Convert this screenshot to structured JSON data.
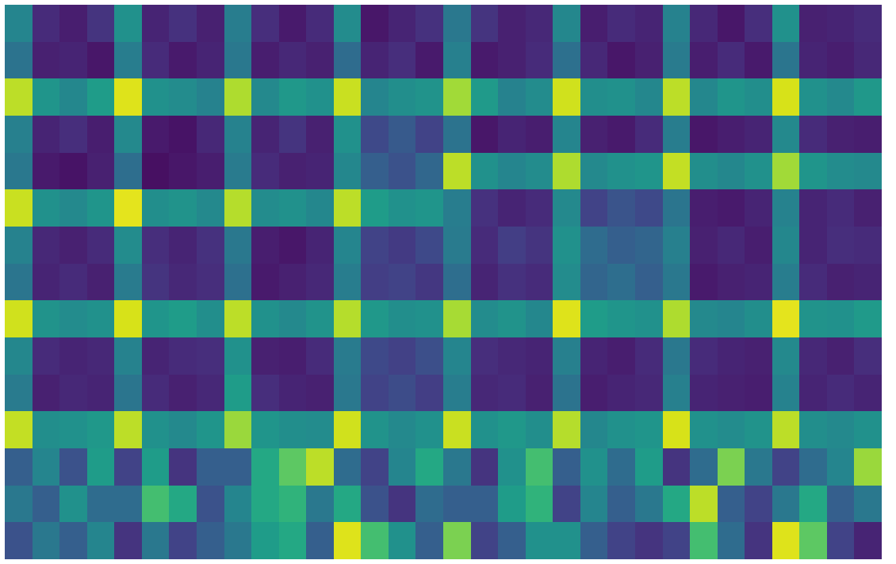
{
  "chart_data": {
    "type": "heatmap",
    "color": "Viridis",
    "tick_labels": false,
    "grid": false,
    "zlim": [
      0,
      1
    ],
    "cells": [
      [
        0.45,
        0.12,
        0.08,
        0.15,
        0.5,
        0.1,
        0.14,
        0.09,
        0.42,
        0.13,
        0.07,
        0.12,
        0.48,
        0.06,
        0.1,
        0.14,
        0.4,
        0.15,
        0.09,
        0.11,
        0.46,
        0.08,
        0.12,
        0.1,
        0.44,
        0.11,
        0.06,
        0.13,
        0.5,
        0.09,
        0.1,
        0.12
      ],
      [
        0.38,
        0.09,
        0.1,
        0.06,
        0.42,
        0.12,
        0.07,
        0.1,
        0.4,
        0.08,
        0.11,
        0.09,
        0.35,
        0.1,
        0.13,
        0.07,
        0.43,
        0.07,
        0.09,
        0.12,
        0.37,
        0.11,
        0.06,
        0.09,
        0.41,
        0.08,
        0.12,
        0.07,
        0.39,
        0.1,
        0.08,
        0.11
      ],
      [
        0.9,
        0.52,
        0.46,
        0.55,
        0.95,
        0.5,
        0.48,
        0.44,
        0.88,
        0.47,
        0.53,
        0.5,
        0.92,
        0.45,
        0.49,
        0.51,
        0.86,
        0.54,
        0.44,
        0.48,
        0.93,
        0.49,
        0.5,
        0.46,
        0.9,
        0.46,
        0.52,
        0.49,
        0.94,
        0.5,
        0.47,
        0.53
      ],
      [
        0.43,
        0.1,
        0.13,
        0.08,
        0.47,
        0.07,
        0.05,
        0.11,
        0.44,
        0.1,
        0.15,
        0.09,
        0.5,
        0.22,
        0.28,
        0.2,
        0.38,
        0.06,
        0.1,
        0.08,
        0.45,
        0.09,
        0.07,
        0.12,
        0.42,
        0.06,
        0.08,
        0.1,
        0.47,
        0.12,
        0.09,
        0.08
      ],
      [
        0.4,
        0.07,
        0.05,
        0.09,
        0.36,
        0.04,
        0.06,
        0.08,
        0.41,
        0.12,
        0.09,
        0.1,
        0.46,
        0.3,
        0.25,
        0.33,
        0.9,
        0.5,
        0.45,
        0.48,
        0.88,
        0.47,
        0.5,
        0.52,
        0.91,
        0.49,
        0.46,
        0.5,
        0.86,
        0.52,
        0.48,
        0.47
      ],
      [
        0.92,
        0.5,
        0.47,
        0.52,
        0.96,
        0.49,
        0.51,
        0.47,
        0.89,
        0.48,
        0.5,
        0.46,
        0.9,
        0.55,
        0.5,
        0.52,
        0.42,
        0.14,
        0.1,
        0.12,
        0.47,
        0.2,
        0.26,
        0.22,
        0.39,
        0.08,
        0.07,
        0.1,
        0.44,
        0.1,
        0.12,
        0.09
      ],
      [
        0.44,
        0.11,
        0.09,
        0.12,
        0.48,
        0.13,
        0.1,
        0.14,
        0.4,
        0.08,
        0.06,
        0.1,
        0.45,
        0.2,
        0.17,
        0.22,
        0.41,
        0.12,
        0.18,
        0.15,
        0.5,
        0.35,
        0.3,
        0.32,
        0.43,
        0.09,
        0.11,
        0.08,
        0.46,
        0.1,
        0.13,
        0.12
      ],
      [
        0.39,
        0.1,
        0.12,
        0.09,
        0.41,
        0.15,
        0.11,
        0.13,
        0.37,
        0.07,
        0.09,
        0.11,
        0.42,
        0.18,
        0.2,
        0.16,
        0.36,
        0.1,
        0.14,
        0.12,
        0.48,
        0.32,
        0.36,
        0.3,
        0.4,
        0.07,
        0.09,
        0.1,
        0.42,
        0.12,
        0.09,
        0.1
      ],
      [
        0.93,
        0.51,
        0.48,
        0.5,
        0.94,
        0.52,
        0.55,
        0.49,
        0.9,
        0.5,
        0.47,
        0.51,
        0.89,
        0.53,
        0.49,
        0.5,
        0.87,
        0.48,
        0.51,
        0.46,
        0.95,
        0.55,
        0.52,
        0.5,
        0.88,
        0.47,
        0.45,
        0.49,
        0.96,
        0.51,
        0.5,
        0.54
      ],
      [
        0.46,
        0.12,
        0.1,
        0.11,
        0.44,
        0.1,
        0.12,
        0.13,
        0.5,
        0.09,
        0.08,
        0.12,
        0.41,
        0.22,
        0.19,
        0.24,
        0.45,
        0.13,
        0.11,
        0.1,
        0.43,
        0.1,
        0.08,
        0.12,
        0.4,
        0.12,
        0.1,
        0.09,
        0.47,
        0.11,
        0.09,
        0.13
      ],
      [
        0.41,
        0.09,
        0.11,
        0.1,
        0.39,
        0.12,
        0.09,
        0.11,
        0.55,
        0.13,
        0.1,
        0.09,
        0.4,
        0.2,
        0.23,
        0.18,
        0.42,
        0.11,
        0.12,
        0.09,
        0.38,
        0.08,
        0.1,
        0.11,
        0.43,
        0.1,
        0.09,
        0.08,
        0.44,
        0.1,
        0.12,
        0.1
      ],
      [
        0.91,
        0.49,
        0.5,
        0.53,
        0.9,
        0.5,
        0.47,
        0.52,
        0.85,
        0.52,
        0.49,
        0.48,
        0.93,
        0.51,
        0.47,
        0.5,
        0.92,
        0.5,
        0.53,
        0.49,
        0.89,
        0.46,
        0.5,
        0.52,
        0.94,
        0.5,
        0.48,
        0.51,
        0.9,
        0.49,
        0.47,
        0.5
      ],
      [
        0.3,
        0.45,
        0.25,
        0.55,
        0.2,
        0.55,
        0.15,
        0.3,
        0.3,
        0.6,
        0.75,
        0.9,
        0.35,
        0.2,
        0.45,
        0.6,
        0.4,
        0.15,
        0.5,
        0.7,
        0.3,
        0.5,
        0.35,
        0.55,
        0.15,
        0.35,
        0.8,
        0.4,
        0.2,
        0.35,
        0.45,
        0.85
      ],
      [
        0.4,
        0.3,
        0.5,
        0.35,
        0.35,
        0.7,
        0.6,
        0.25,
        0.45,
        0.6,
        0.65,
        0.4,
        0.6,
        0.25,
        0.15,
        0.35,
        0.3,
        0.3,
        0.55,
        0.65,
        0.2,
        0.45,
        0.3,
        0.4,
        0.6,
        0.9,
        0.3,
        0.2,
        0.4,
        0.6,
        0.3,
        0.4
      ],
      [
        0.25,
        0.4,
        0.3,
        0.45,
        0.15,
        0.4,
        0.2,
        0.3,
        0.4,
        0.55,
        0.6,
        0.3,
        0.95,
        0.7,
        0.5,
        0.3,
        0.8,
        0.2,
        0.3,
        0.5,
        0.5,
        0.3,
        0.2,
        0.15,
        0.2,
        0.7,
        0.35,
        0.15,
        0.95,
        0.75,
        0.2,
        0.1
      ]
    ]
  }
}
